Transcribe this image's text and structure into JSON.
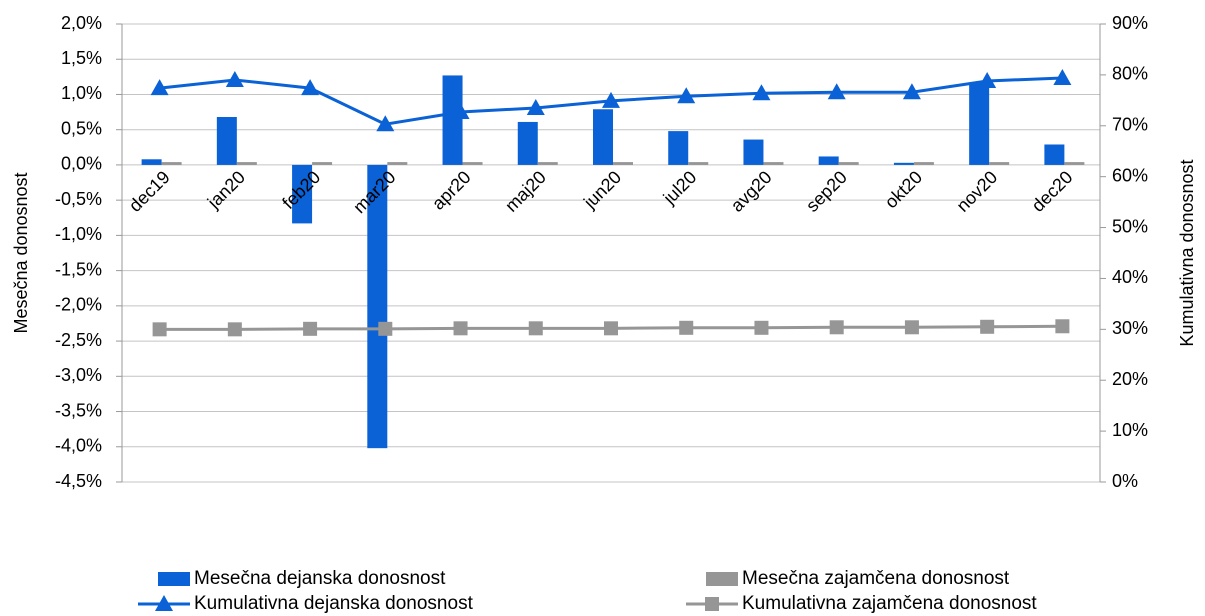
{
  "chart_data": {
    "type": "combo",
    "y_label": "Mesečna donosnost",
    "y2_label": "Kumulativna donosnost",
    "categories": [
      "dec19",
      "jan20",
      "feb20",
      "mar20",
      "apr20",
      "maj20",
      "jun20",
      "jul20",
      "avg20",
      "sep20",
      "okt20",
      "nov20",
      "dec20"
    ],
    "ylim": [
      -4.5,
      2.0
    ],
    "yticks": [
      {
        "value": 2.0,
        "label": "2,0%"
      },
      {
        "value": 1.5,
        "label": "1,5%"
      },
      {
        "value": 1.0,
        "label": "1,0%"
      },
      {
        "value": 0.5,
        "label": "0,5%"
      },
      {
        "value": 0.0,
        "label": "0,0%"
      },
      {
        "value": -0.5,
        "label": "-0,5%"
      },
      {
        "value": -1.0,
        "label": "-1,0%"
      },
      {
        "value": -1.5,
        "label": "-1,5%"
      },
      {
        "value": -2.0,
        "label": "-2,0%"
      },
      {
        "value": -2.5,
        "label": "-2,5%"
      },
      {
        "value": -3.0,
        "label": "-3,0%"
      },
      {
        "value": -3.5,
        "label": "-3,5%"
      },
      {
        "value": -4.0,
        "label": "-4,0%"
      },
      {
        "value": -4.5,
        "label": "-4,5%"
      }
    ],
    "y2lim": [
      0,
      90
    ],
    "y2ticks": [
      {
        "value": 90,
        "label": "90%"
      },
      {
        "value": 80,
        "label": "80%"
      },
      {
        "value": 70,
        "label": "70%"
      },
      {
        "value": 60,
        "label": "60%"
      },
      {
        "value": 50,
        "label": "50%"
      },
      {
        "value": 40,
        "label": "40%"
      },
      {
        "value": 30,
        "label": "30%"
      },
      {
        "value": 20,
        "label": "20%"
      },
      {
        "value": 10,
        "label": "10%"
      },
      {
        "value": 0,
        "label": "0%"
      }
    ],
    "grid": true,
    "legend": "bottom",
    "series": [
      {
        "name": "Mesečna dejanska donosnost",
        "type": "bar",
        "color": "#0a62d6",
        "values": [
          0.08,
          0.68,
          -0.83,
          -4.02,
          1.27,
          0.61,
          0.79,
          0.48,
          0.36,
          0.12,
          0.03,
          1.17,
          0.29
        ]
      },
      {
        "name": "Mesečna zajamčena donosnost",
        "type": "bar",
        "color": "#969696",
        "values": [
          0.04,
          0.04,
          0.04,
          0.04,
          0.04,
          0.04,
          0.04,
          0.04,
          0.04,
          0.04,
          0.04,
          0.04,
          0.04
        ]
      },
      {
        "name": "Kumulativna dejanska donosnost",
        "type": "line",
        "marker": "triangle",
        "axis": "y2",
        "color": "#0a62d6",
        "values": [
          77.4,
          79.0,
          77.4,
          70.3,
          72.7,
          73.5,
          74.9,
          75.8,
          76.4,
          76.6,
          76.6,
          78.8,
          79.4
        ]
      },
      {
        "name": "Kumulativna zajamčena donosnost",
        "type": "line",
        "marker": "square",
        "axis": "y2",
        "color": "#969696",
        "values": [
          30.0,
          30.0,
          30.1,
          30.1,
          30.2,
          30.2,
          30.2,
          30.3,
          30.3,
          30.4,
          30.4,
          30.5,
          30.6
        ]
      }
    ]
  }
}
